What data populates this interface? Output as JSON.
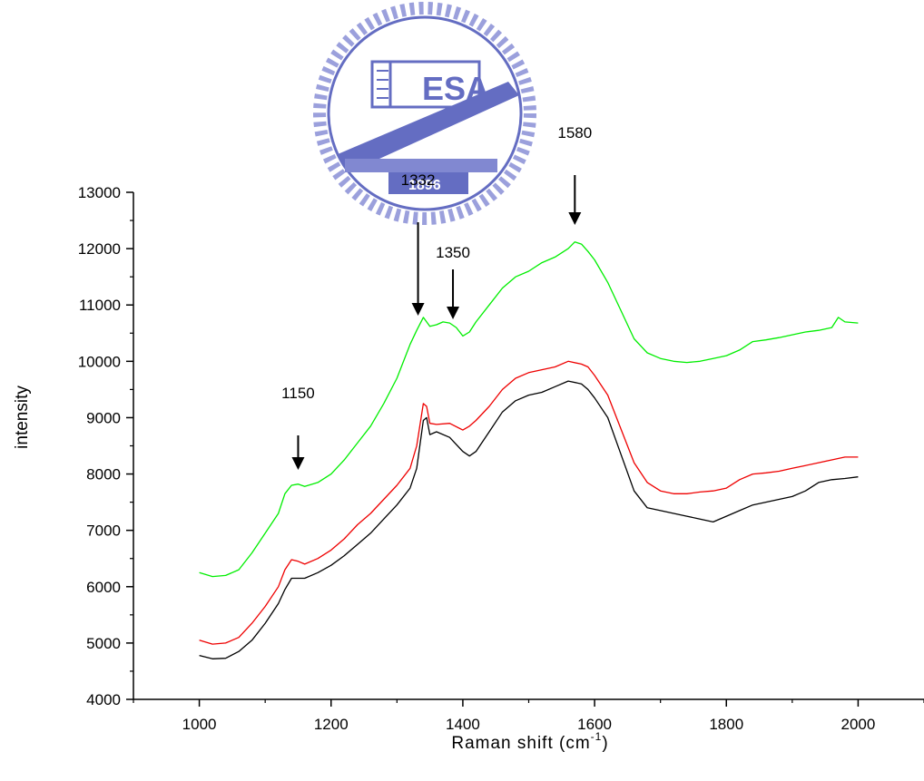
{
  "chart_data": {
    "type": "line",
    "title": "",
    "xlabel": "Raman shift (cm",
    "xlabel_sup": "-1",
    "xlabel_close": ")",
    "ylabel": "intensity",
    "xlim": [
      900,
      2100
    ],
    "ylim": [
      4000,
      13000
    ],
    "xticks": [
      1000,
      1200,
      1400,
      1600,
      1800,
      2000
    ],
    "yticks": [
      4000,
      5000,
      6000,
      7000,
      8000,
      9000,
      10000,
      11000,
      12000,
      13000
    ],
    "grid": false,
    "legend": "none",
    "series": [
      {
        "color": "#00ee00",
        "x": [
          1000,
          1020,
          1040,
          1060,
          1080,
          1100,
          1120,
          1130,
          1140,
          1150,
          1160,
          1180,
          1200,
          1220,
          1240,
          1260,
          1280,
          1300,
          1320,
          1330,
          1340,
          1350,
          1360,
          1370,
          1380,
          1390,
          1400,
          1410,
          1420,
          1440,
          1460,
          1480,
          1500,
          1520,
          1540,
          1560,
          1570,
          1580,
          1590,
          1600,
          1620,
          1640,
          1660,
          1680,
          1700,
          1720,
          1740,
          1760,
          1780,
          1800,
          1820,
          1840,
          1860,
          1880,
          1900,
          1920,
          1940,
          1960,
          1970,
          1980,
          2000
        ],
        "y": [
          6250,
          6180,
          6200,
          6300,
          6600,
          6950,
          7300,
          7650,
          7800,
          7820,
          7780,
          7850,
          8000,
          8250,
          8550,
          8850,
          9250,
          9700,
          10300,
          10550,
          10780,
          10620,
          10650,
          10700,
          10680,
          10600,
          10450,
          10520,
          10700,
          11000,
          11300,
          11500,
          11600,
          11750,
          11850,
          12000,
          12120,
          12080,
          11950,
          11800,
          11400,
          10900,
          10400,
          10150,
          10050,
          10000,
          9980,
          10000,
          10050,
          10100,
          10200,
          10350,
          10380,
          10420,
          10470,
          10520,
          10550,
          10600,
          10780,
          10700,
          10680
        ]
      },
      {
        "color": "#ee0000",
        "x": [
          1000,
          1020,
          1040,
          1060,
          1080,
          1100,
          1120,
          1130,
          1140,
          1150,
          1160,
          1180,
          1200,
          1220,
          1240,
          1260,
          1280,
          1300,
          1320,
          1330,
          1340,
          1345,
          1350,
          1360,
          1380,
          1400,
          1410,
          1420,
          1440,
          1460,
          1480,
          1500,
          1520,
          1540,
          1560,
          1580,
          1590,
          1600,
          1620,
          1640,
          1660,
          1680,
          1700,
          1720,
          1740,
          1760,
          1780,
          1800,
          1820,
          1840,
          1860,
          1880,
          1900,
          1920,
          1940,
          1960,
          1980,
          2000
        ],
        "y": [
          5050,
          4980,
          5000,
          5100,
          5350,
          5650,
          6000,
          6300,
          6480,
          6450,
          6400,
          6500,
          6650,
          6850,
          7100,
          7300,
          7550,
          7800,
          8100,
          8500,
          9250,
          9200,
          8900,
          8880,
          8900,
          8780,
          8850,
          8950,
          9200,
          9500,
          9700,
          9800,
          9850,
          9900,
          10000,
          9950,
          9900,
          9750,
          9400,
          8800,
          8200,
          7850,
          7700,
          7650,
          7650,
          7680,
          7700,
          7750,
          7900,
          8000,
          8020,
          8050,
          8100,
          8150,
          8200,
          8250,
          8300,
          8300
        ]
      },
      {
        "color": "#000000",
        "x": [
          1000,
          1020,
          1040,
          1060,
          1080,
          1100,
          1120,
          1130,
          1140,
          1150,
          1160,
          1180,
          1200,
          1220,
          1240,
          1260,
          1280,
          1300,
          1320,
          1330,
          1340,
          1345,
          1350,
          1360,
          1380,
          1400,
          1410,
          1420,
          1440,
          1460,
          1480,
          1500,
          1520,
          1540,
          1560,
          1580,
          1590,
          1600,
          1620,
          1640,
          1660,
          1680,
          1700,
          1720,
          1740,
          1760,
          1780,
          1800,
          1820,
          1840,
          1860,
          1880,
          1900,
          1920,
          1940,
          1960,
          1980,
          2000
        ],
        "y": [
          4780,
          4720,
          4730,
          4850,
          5050,
          5350,
          5700,
          5950,
          6150,
          6150,
          6150,
          6250,
          6380,
          6550,
          6750,
          6950,
          7200,
          7450,
          7750,
          8100,
          8950,
          9000,
          8700,
          8750,
          8650,
          8400,
          8320,
          8400,
          8750,
          9100,
          9300,
          9400,
          9450,
          9550,
          9650,
          9600,
          9500,
          9350,
          9000,
          8350,
          7700,
          7400,
          7350,
          7300,
          7250,
          7200,
          7150,
          7250,
          7350,
          7450,
          7500,
          7550,
          7600,
          7700,
          7850,
          7900,
          7920,
          7950
        ]
      }
    ],
    "annotations": [
      {
        "text": "1150",
        "x": 1150
      },
      {
        "text": "1332",
        "x": 1332
      },
      {
        "text": "1350",
        "x": 1385
      },
      {
        "text": "1580",
        "x": 1570
      }
    ],
    "watermark": {
      "text": "ESA",
      "year": "1896",
      "color": "#4a54b8"
    }
  }
}
